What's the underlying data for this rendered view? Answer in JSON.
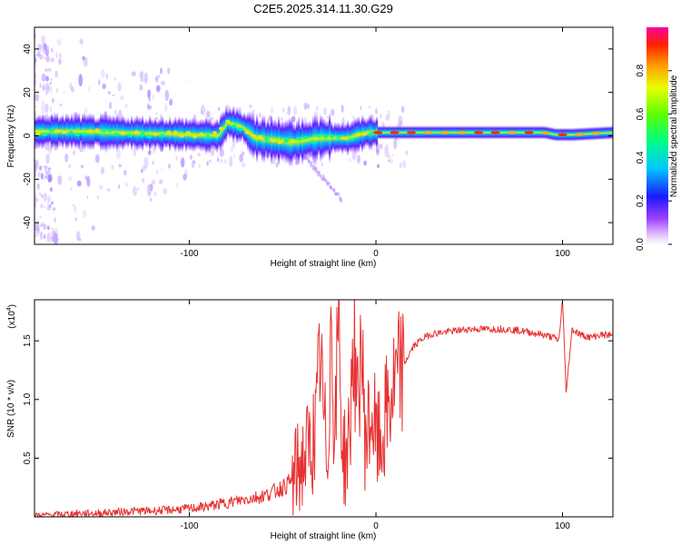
{
  "title": "C2E5.2025.314.11.30.G29",
  "chart_data": [
    {
      "type": "heatmap",
      "xlabel": "Height of straight line (km)",
      "ylabel": "Frequency (Hz)",
      "xlim": [
        -183,
        127
      ],
      "ylim": [
        -50,
        50
      ],
      "xticks": [
        -100,
        0,
        100
      ],
      "xtick_labels": [
        "-100",
        "0",
        "100"
      ],
      "yticks": [
        -40,
        -20,
        0,
        20,
        40
      ],
      "ytick_labels": [
        "-40",
        "-20",
        "0",
        "20",
        "40"
      ],
      "colorbar": {
        "label": "Normalized spectral amplitude",
        "range": [
          0,
          1
        ],
        "ticks": [
          0.0,
          0.2,
          0.4,
          0.6,
          0.8
        ],
        "tick_labels": [
          "0.0",
          "0.2",
          "0.4",
          "0.6",
          "0.8"
        ]
      },
      "ridge_center_hz": [
        [
          -183,
          2
        ],
        [
          -160,
          2
        ],
        [
          -140,
          1.5
        ],
        [
          -120,
          1
        ],
        [
          -100,
          0.5
        ],
        [
          -85,
          0
        ],
        [
          -80,
          6
        ],
        [
          -72,
          4
        ],
        [
          -65,
          -1
        ],
        [
          -55,
          -2
        ],
        [
          -45,
          -3
        ],
        [
          -38,
          -2
        ],
        [
          -30,
          -1
        ],
        [
          -22,
          -1
        ],
        [
          -15,
          -1
        ],
        [
          -10,
          0.5
        ],
        [
          -5,
          1.5
        ],
        [
          0,
          1.5
        ],
        [
          20,
          1.5
        ],
        [
          60,
          1.5
        ],
        [
          90,
          1.5
        ],
        [
          96,
          0.5
        ],
        [
          105,
          0.5
        ],
        [
          127,
          1.5
        ]
      ]
    },
    {
      "type": "line",
      "xlabel": "Height of straight line (km)",
      "ylabel": "SNR (10 * v/v)",
      "multiplier_label": "(x10",
      "multiplier_exp": "4",
      "xlim": [
        -183,
        127
      ],
      "ylim": [
        0,
        1.85
      ],
      "xticks": [
        -100,
        0,
        100
      ],
      "xtick_labels": [
        "-100",
        "0",
        "100"
      ],
      "yticks": [
        0.5,
        1.0,
        1.5
      ],
      "ytick_labels": [
        "0.5",
        "1.0",
        "1.5"
      ],
      "color": "#e83030",
      "series": [
        {
          "name": "SNR",
          "x": [
            -183,
            -170,
            -160,
            -150,
            -140,
            -130,
            -120,
            -110,
            -100,
            -90,
            -80,
            -70,
            -60,
            -50,
            -45,
            -40,
            -35,
            -32,
            -30,
            -28,
            -26,
            -24,
            -22,
            -20,
            -18,
            -16,
            -14,
            -12,
            -10,
            -8,
            -6,
            -4,
            -2,
            0,
            2,
            4,
            6,
            8,
            10,
            15,
            20,
            25,
            30,
            40,
            50,
            60,
            70,
            80,
            90,
            95,
            98,
            100,
            102,
            105,
            110,
            115,
            120,
            127
          ],
          "y": [
            0.01,
            0.02,
            0.03,
            0.03,
            0.04,
            0.05,
            0.05,
            0.06,
            0.07,
            0.09,
            0.12,
            0.15,
            0.18,
            0.25,
            0.3,
            0.45,
            0.6,
            0.75,
            1.4,
            0.8,
            0.5,
            1.7,
            0.6,
            1.78,
            0.55,
            0.5,
            0.7,
            1.6,
            0.8,
            1.55,
            0.7,
            0.75,
            0.9,
            0.65,
            0.6,
            0.7,
            0.9,
            1.0,
            1.1,
            1.3,
            1.45,
            1.52,
            1.56,
            1.58,
            1.6,
            1.6,
            1.6,
            1.58,
            1.55,
            1.53,
            1.5,
            1.85,
            1.05,
            1.6,
            1.55,
            1.53,
            1.55,
            1.55
          ]
        }
      ]
    }
  ]
}
